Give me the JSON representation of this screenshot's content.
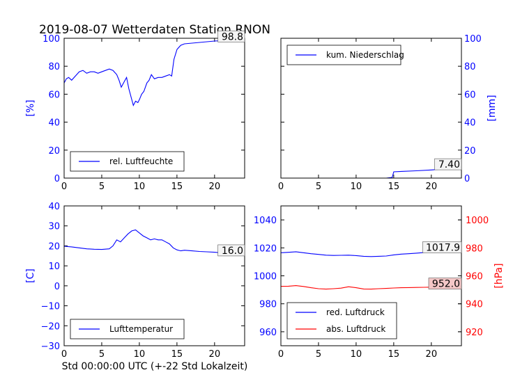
{
  "title": "2019-08-07 Wetterdaten Station RNON",
  "xlabel": "Std 00:00:00 UTC (+-22 Std Lokalzeit)",
  "colors": {
    "blue": "#0000ff",
    "red": "#ff0000",
    "black": "#000000",
    "annotation_red_bg": "#f4c7c7"
  },
  "chart_data": [
    {
      "id": "humidity",
      "type": "line",
      "xlim": [
        0,
        24
      ],
      "ylim": [
        0,
        100
      ],
      "xticks": [
        "0",
        "5",
        "10",
        "15",
        "20"
      ],
      "yticks": [
        "0",
        "20",
        "40",
        "60",
        "80",
        "100"
      ],
      "ylabel": "[%]",
      "axis_color": "blue",
      "legend_position": "lower-left",
      "series": [
        {
          "name": "rel. Luftfeuchte",
          "color": "blue",
          "x": [
            0,
            0.3,
            0.6,
            1,
            1.5,
            2,
            2.5,
            3,
            3.5,
            4,
            4.5,
            5,
            5.5,
            6,
            6.5,
            7,
            7.3,
            7.6,
            8,
            8.3,
            8.6,
            9,
            9.2,
            9.5,
            9.8,
            10,
            10.3,
            10.6,
            11,
            11.3,
            11.6,
            12,
            12.5,
            13,
            13.5,
            14,
            14.3,
            14.6,
            15,
            15.5,
            16,
            17,
            18,
            19,
            20,
            21,
            22,
            23,
            24
          ],
          "y": [
            68,
            71,
            72,
            70,
            73,
            76,
            77,
            75,
            76,
            76,
            75,
            76,
            77,
            78,
            77,
            74,
            70,
            65,
            69,
            72,
            64,
            56,
            52,
            55,
            54,
            56,
            60,
            62,
            68,
            70,
            74,
            71,
            72,
            72,
            73,
            74,
            73,
            85,
            92,
            95,
            96,
            96.5,
            97,
            97.5,
            98,
            98.3,
            98.5,
            98.7,
            98.8
          ]
        }
      ],
      "annotation": {
        "text": "98.8",
        "x": 24,
        "y": 98.8
      }
    },
    {
      "id": "precipitation",
      "type": "line",
      "xlim": [
        0,
        24
      ],
      "ylim": [
        0,
        100
      ],
      "xticks": [
        "0",
        "5",
        "10",
        "15",
        "20"
      ],
      "yticks": [
        "0",
        "20",
        "40",
        "60",
        "80",
        "100"
      ],
      "ylabel": "[mm]",
      "axis_color": "blue",
      "legend_position": "upper-left",
      "series": [
        {
          "name": "kum. Niederschlag",
          "color": "blue",
          "x": [
            0,
            14,
            14.8,
            15,
            16,
            18,
            20,
            22,
            24
          ],
          "y": [
            0,
            0,
            0.5,
            4.5,
            4.8,
            5.2,
            5.8,
            6.6,
            7.4
          ]
        }
      ],
      "annotation": {
        "text": "7.40",
        "x": 24,
        "y": 7.4
      }
    },
    {
      "id": "temperature",
      "type": "line",
      "xlim": [
        0,
        24
      ],
      "ylim": [
        -30,
        40
      ],
      "xticks": [
        "0",
        "5",
        "10",
        "15",
        "20"
      ],
      "yticks": [
        "−30",
        "−20",
        "−10",
        "0",
        "10",
        "20",
        "30",
        "40"
      ],
      "ylabel": "[C]",
      "axis_color": "blue",
      "legend_position": "lower-left",
      "series": [
        {
          "name": "Lufttemperatur",
          "color": "blue",
          "x": [
            0,
            1,
            2,
            3,
            4,
            5,
            6,
            6.5,
            7,
            7.5,
            8,
            8.5,
            9,
            9.5,
            10,
            10.5,
            11,
            11.5,
            12,
            12.5,
            13,
            13.5,
            14,
            14.5,
            15,
            15.5,
            16,
            17,
            18,
            19,
            20,
            21,
            22,
            23,
            24
          ],
          "y": [
            19.8,
            19.5,
            19,
            18.5,
            18.3,
            18.2,
            18.5,
            20,
            23,
            22,
            24,
            26,
            27.5,
            28,
            26.5,
            25,
            24,
            23,
            23.5,
            23,
            23,
            22,
            21,
            19,
            18,
            17.5,
            17.8,
            17.5,
            17.2,
            17,
            16.8,
            16.5,
            16.3,
            16.1,
            16.0
          ]
        }
      ],
      "annotation": {
        "text": "16.0",
        "x": 24,
        "y": 16.0
      }
    },
    {
      "id": "pressure",
      "type": "line",
      "xlim": [
        0,
        24
      ],
      "ylim": [
        950,
        1050
      ],
      "ylim_right": [
        910,
        1010
      ],
      "xticks": [
        "0",
        "5",
        "10",
        "15",
        "20"
      ],
      "yticks": [
        "960",
        "980",
        "1000",
        "1020",
        "1040"
      ],
      "yticks_right": [
        "920",
        "940",
        "960",
        "980",
        "1000"
      ],
      "ylabel_right": "[hPa]",
      "axis_color": "blue",
      "axis_color_right": "red",
      "legend_position": "lower-left",
      "series": [
        {
          "name": "red. Luftdruck",
          "color": "blue",
          "axis": "left",
          "x": [
            0,
            1,
            2,
            3,
            4,
            5,
            6,
            7,
            8,
            9,
            10,
            11,
            12,
            13,
            14,
            15,
            16,
            17,
            18,
            19,
            20,
            21,
            22,
            23,
            24
          ],
          "y": [
            1016.5,
            1016.8,
            1017.2,
            1016.5,
            1015.8,
            1015.3,
            1014.8,
            1014.6,
            1014.7,
            1014.8,
            1014.5,
            1014.0,
            1013.8,
            1014.0,
            1014.2,
            1015.0,
            1015.5,
            1015.8,
            1016.2,
            1016.6,
            1017.0,
            1017.3,
            1017.6,
            1017.8,
            1017.9
          ]
        },
        {
          "name": "abs. Luftdruck",
          "color": "red",
          "axis": "right",
          "x": [
            0,
            1,
            2,
            3,
            4,
            5,
            6,
            7,
            8,
            9,
            10,
            11,
            12,
            13,
            14,
            15,
            16,
            17,
            18,
            19,
            20,
            21,
            22,
            23,
            24
          ],
          "y": [
            952.5,
            952.6,
            953.0,
            952.4,
            951.5,
            950.8,
            950.5,
            950.8,
            951.2,
            952.2,
            951.5,
            950.6,
            950.5,
            950.8,
            951.0,
            951.3,
            951.5,
            951.6,
            951.7,
            951.8,
            951.9,
            952.0,
            952.0,
            952.0,
            952.0
          ]
        }
      ],
      "annotations": [
        {
          "text": "1017.9",
          "x": 24,
          "y": 1017.9,
          "axis": "left"
        },
        {
          "text": "952.0",
          "x": 24,
          "y": 952.0,
          "axis": "right",
          "highlight": true
        }
      ]
    }
  ]
}
